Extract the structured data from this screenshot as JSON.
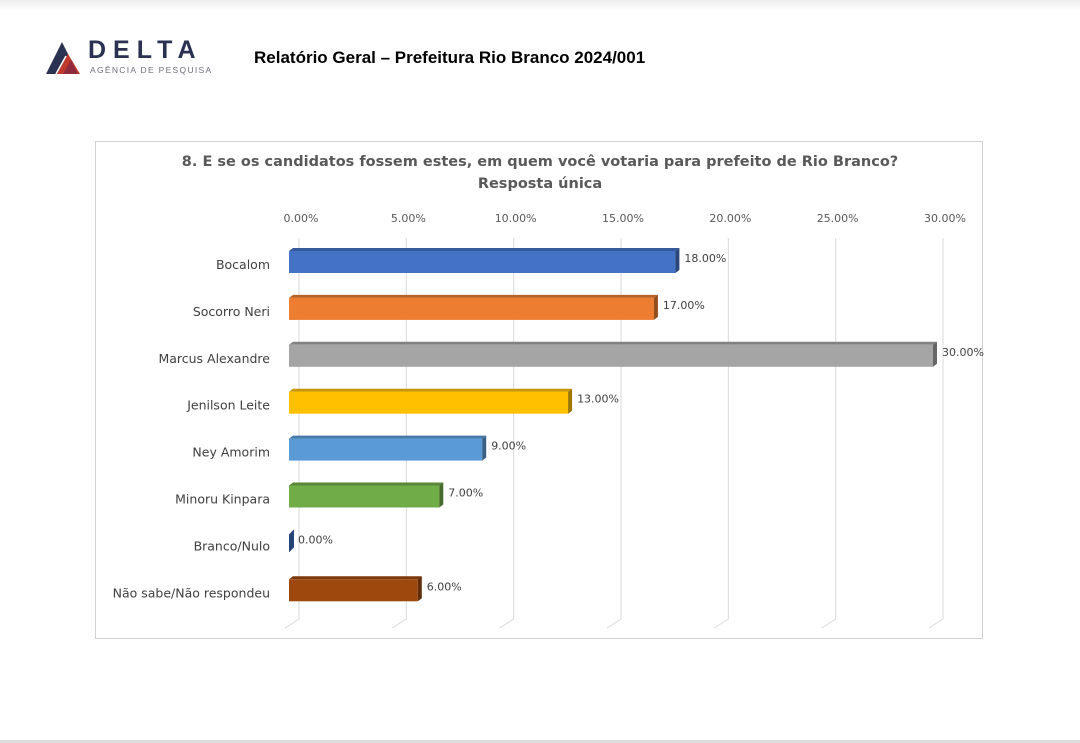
{
  "header": {
    "logo_name": "DELTA",
    "logo_tagline": "AGÊNCIA DE PESQUISA",
    "report_title": "Relatório Geral – Prefeitura Rio Branco 2024/001"
  },
  "chart_data": {
    "type": "bar",
    "orientation": "horizontal",
    "title": "8. E se os candidatos fossem estes, em quem você votaria para prefeito de Rio Branco?",
    "subtitle": "Resposta única",
    "categories": [
      "Bocalom",
      "Socorro Neri",
      "Marcus Alexandre",
      "Jenilson Leite",
      "Ney Amorim",
      "Minoru Kinpara",
      "Branco/Nulo",
      "Não sabe/Não respondeu"
    ],
    "values": [
      18.0,
      17.0,
      30.0,
      13.0,
      9.0,
      7.0,
      0.0,
      6.0
    ],
    "value_labels": [
      "18.00%",
      "17.00%",
      "30.00%",
      "13.00%",
      "9.00%",
      "7.00%",
      "0.00%",
      "6.00%"
    ],
    "colors": [
      "#4472c4",
      "#ed7d31",
      "#a5a5a5",
      "#ffc000",
      "#5b9bd5",
      "#70ad47",
      "#264478",
      "#9e480e"
    ],
    "xlim": [
      0,
      30
    ],
    "ticks": [
      0,
      5,
      10,
      15,
      20,
      25,
      30
    ],
    "tick_labels": [
      "0.00%",
      "5.00%",
      "10.00%",
      "15.00%",
      "20.00%",
      "25.00%",
      "30.00%"
    ],
    "axis_position": "top",
    "grid": true,
    "legend": "none",
    "style": "3d"
  }
}
